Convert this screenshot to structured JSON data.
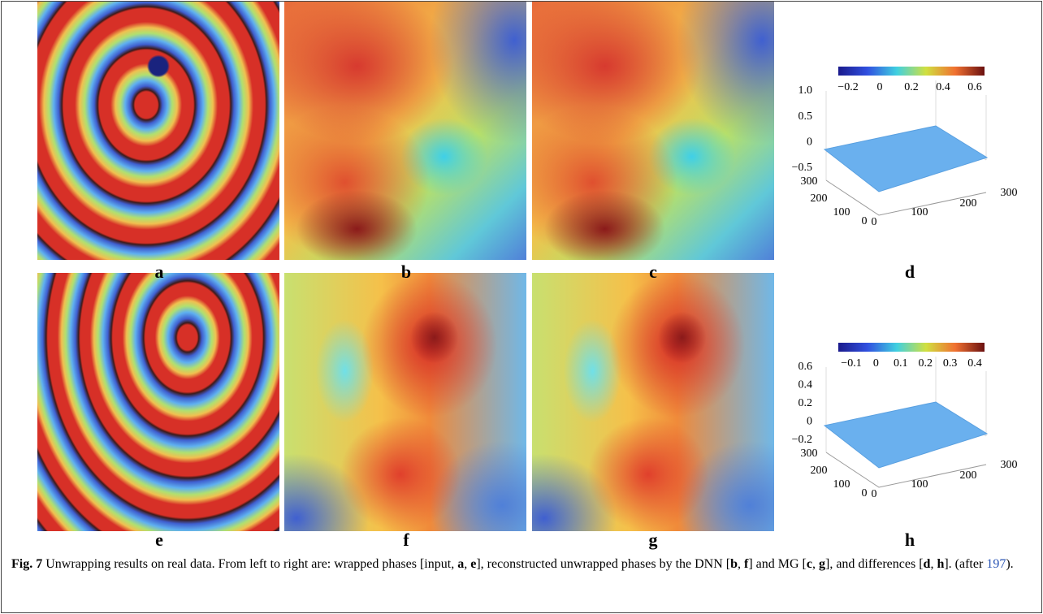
{
  "panels": [
    {
      "label": "a"
    },
    {
      "label": "b"
    },
    {
      "label": "c"
    },
    {
      "label": "d"
    },
    {
      "label": "e"
    },
    {
      "label": "f"
    },
    {
      "label": "g"
    },
    {
      "label": "h"
    }
  ],
  "plots": [
    {
      "colorbar_ticks": [
        "−0.2",
        "0",
        "0.2",
        "0.4",
        "0.6"
      ],
      "z_ticks": [
        "1.0",
        "0.5",
        "0",
        "−0.5"
      ],
      "y_ticks": [
        "300",
        "200",
        "100",
        "0"
      ],
      "x_ticks": [
        "0",
        "100",
        "200",
        "300"
      ]
    },
    {
      "colorbar_ticks": [
        "−0.1",
        "0",
        "0.1",
        "0.2",
        "0.3",
        "0.4"
      ],
      "z_ticks": [
        "0.6",
        "0.4",
        "0.2",
        "0",
        "−0.2"
      ],
      "y_ticks": [
        "300",
        "200",
        "100",
        "0"
      ],
      "x_ticks": [
        "0",
        "100",
        "200",
        "300"
      ]
    }
  ],
  "caption": {
    "parts": [
      "Fig. 7",
      " Unwrapping results on real data. From left to right are: wrapped phases [input, ",
      "a",
      ", ",
      "e",
      "], reconstructed unwrapped phases by the DNN [",
      "b",
      ", ",
      "f",
      "] and MG [",
      "c",
      ", ",
      "g",
      "], and differences [",
      "d",
      ", ",
      "h",
      "]. (after ",
      "197",
      ")."
    ]
  }
}
